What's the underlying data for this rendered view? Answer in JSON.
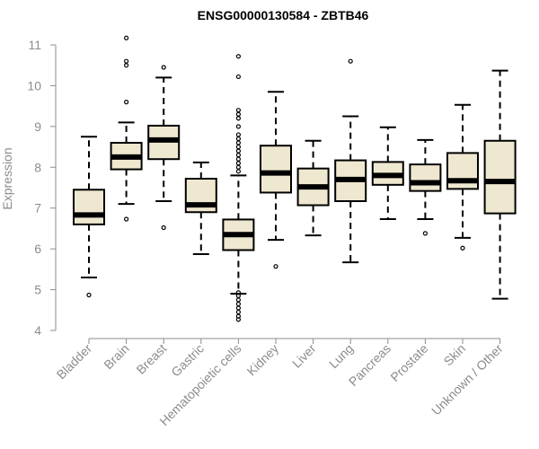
{
  "chart_data": {
    "type": "boxplot",
    "title": "ENSG00000130584 - ZBTB46",
    "xlabel": "",
    "ylabel": "Expression",
    "ylim": [
      4,
      11
    ],
    "yticks": [
      4,
      5,
      6,
      7,
      8,
      9,
      10,
      11
    ],
    "grid": false,
    "box_fill": "#efe8d0",
    "line_color": "#000000",
    "axis_color": "#8c8c8c",
    "categories": [
      "Bladder",
      "Brain",
      "Breast",
      "Gastric",
      "Hematopoietic cells",
      "Kidney",
      "Liver",
      "Lung",
      "Pancreas",
      "Prostate",
      "Skin",
      "Unknown / Other"
    ],
    "boxes": [
      {
        "whisker_low": 5.3,
        "q1": 6.6,
        "median": 6.83,
        "q3": 7.45,
        "whisker_high": 8.75,
        "outliers": [
          4.87
        ]
      },
      {
        "whisker_low": 7.1,
        "q1": 7.95,
        "median": 8.25,
        "q3": 8.6,
        "whisker_high": 9.1,
        "outliers": [
          6.73,
          9.6,
          10.5,
          10.6,
          11.17
        ]
      },
      {
        "whisker_low": 7.17,
        "q1": 8.2,
        "median": 8.67,
        "q3": 9.02,
        "whisker_high": 10.2,
        "outliers": [
          6.52,
          10.45
        ]
      },
      {
        "whisker_low": 5.87,
        "q1": 6.9,
        "median": 7.08,
        "q3": 7.72,
        "whisker_high": 8.12,
        "outliers": []
      },
      {
        "whisker_low": 4.9,
        "q1": 5.97,
        "median": 6.35,
        "q3": 6.72,
        "whisker_high": 7.8,
        "outliers": [
          4.27,
          4.35,
          4.45,
          4.55,
          4.65,
          4.75,
          4.85,
          4.93,
          7.9,
          8.0,
          8.1,
          8.2,
          8.3,
          8.4,
          8.5,
          8.6,
          8.7,
          8.8,
          9.0,
          9.2,
          9.3,
          9.4,
          10.22,
          10.72
        ]
      },
      {
        "whisker_low": 6.22,
        "q1": 7.38,
        "median": 7.86,
        "q3": 8.53,
        "whisker_high": 9.85,
        "outliers": [
          5.57
        ]
      },
      {
        "whisker_low": 6.33,
        "q1": 7.07,
        "median": 7.52,
        "q3": 7.97,
        "whisker_high": 8.65,
        "outliers": []
      },
      {
        "whisker_low": 5.67,
        "q1": 7.17,
        "median": 7.7,
        "q3": 8.17,
        "whisker_high": 9.25,
        "outliers": [
          10.6
        ]
      },
      {
        "whisker_low": 6.73,
        "q1": 7.57,
        "median": 7.8,
        "q3": 8.13,
        "whisker_high": 8.98,
        "outliers": []
      },
      {
        "whisker_low": 6.73,
        "q1": 7.42,
        "median": 7.62,
        "q3": 8.07,
        "whisker_high": 8.67,
        "outliers": [
          6.38
        ]
      },
      {
        "whisker_low": 6.27,
        "q1": 7.47,
        "median": 7.67,
        "q3": 8.35,
        "whisker_high": 9.53,
        "outliers": [
          6.02
        ]
      },
      {
        "whisker_low": 4.78,
        "q1": 6.87,
        "median": 7.65,
        "q3": 8.65,
        "whisker_high": 10.37,
        "outliers": []
      }
    ]
  }
}
